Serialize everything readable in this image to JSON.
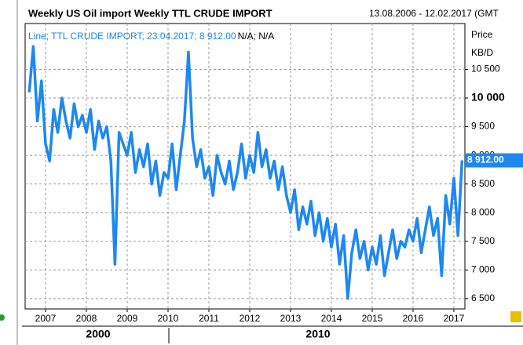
{
  "chart_data": {
    "type": "line",
    "title": "Weekly US Oil import Weekly TTL CRUDE IMPORT",
    "date_range": "13.08.2006 - 12.02.2017 (GMT",
    "legend_text": "Line; TTL CRUDE IMPORT; 23.04.2017; 8 912.00",
    "legend_extra": "N/A; N/A",
    "y_axis_title": "Price",
    "y_axis_unit": "KB/D",
    "current_label": "8 912.00",
    "decade_labels": [
      "2000",
      "2010"
    ],
    "xlim": [
      2006.5,
      2017.27
    ],
    "xticks": [
      2007,
      2008,
      2009,
      2010,
      2011,
      2012,
      2013,
      2014,
      2015,
      2016,
      2017
    ],
    "ylim": [
      6320,
      11300
    ],
    "yticks": [
      {
        "value": 6500,
        "label": "6 500"
      },
      {
        "value": 7000,
        "label": "7 000"
      },
      {
        "value": 7500,
        "label": "7 500"
      },
      {
        "value": 8000,
        "label": "8 000"
      },
      {
        "value": 8500,
        "label": "8 500"
      },
      {
        "value": 9000,
        "label": "9 000"
      },
      {
        "value": 9500,
        "label": "9 500"
      },
      {
        "value": 10000,
        "label": "10 000"
      },
      {
        "value": 10500,
        "label": "10 500"
      }
    ],
    "grid": true,
    "x": [
      2006.6,
      2006.7,
      2006.8,
      2006.9,
      2007.0,
      2007.1,
      2007.2,
      2007.3,
      2007.4,
      2007.5,
      2007.6,
      2007.7,
      2007.8,
      2007.9,
      2008.0,
      2008.1,
      2008.2,
      2008.3,
      2008.4,
      2008.5,
      2008.6,
      2008.7,
      2008.8,
      2008.9,
      2009.0,
      2009.1,
      2009.2,
      2009.3,
      2009.4,
      2009.5,
      2009.6,
      2009.7,
      2009.8,
      2009.9,
      2010.0,
      2010.1,
      2010.2,
      2010.3,
      2010.4,
      2010.5,
      2010.6,
      2010.7,
      2010.8,
      2010.9,
      2011.0,
      2011.1,
      2011.2,
      2011.3,
      2011.4,
      2011.5,
      2011.6,
      2011.7,
      2011.8,
      2011.9,
      2012.0,
      2012.1,
      2012.2,
      2012.3,
      2012.4,
      2012.5,
      2012.6,
      2012.7,
      2012.8,
      2012.9,
      2013.0,
      2013.1,
      2013.2,
      2013.3,
      2013.4,
      2013.5,
      2013.6,
      2013.7,
      2013.8,
      2013.9,
      2014.0,
      2014.1,
      2014.2,
      2014.3,
      2014.4,
      2014.5,
      2014.6,
      2014.7,
      2014.8,
      2014.9,
      2015.0,
      2015.1,
      2015.2,
      2015.3,
      2015.4,
      2015.5,
      2015.6,
      2015.7,
      2015.8,
      2015.9,
      2016.0,
      2016.1,
      2016.2,
      2016.3,
      2016.4,
      2016.5,
      2016.6,
      2016.7,
      2016.8,
      2016.9,
      2017.0,
      2017.1,
      2017.2
    ],
    "series": [
      {
        "name": "TTL CRUDE IMPORT",
        "color": "#1e88f0",
        "values": [
          10100,
          10900,
          9600,
          10300,
          9200,
          8900,
          9800,
          9400,
          10000,
          9600,
          9300,
          9900,
          9500,
          9700,
          9400,
          9800,
          9100,
          9600,
          9300,
          9500,
          8900,
          7100,
          9400,
          9200,
          9000,
          9400,
          8700,
          9100,
          8800,
          9200,
          8500,
          8900,
          8300,
          8700,
          8600,
          9200,
          8400,
          9000,
          9600,
          10800,
          9300,
          8800,
          9100,
          8600,
          8800,
          8300,
          9000,
          8700,
          8500,
          8900,
          8400,
          8700,
          9200,
          8600,
          9000,
          8700,
          9400,
          8800,
          9100,
          8600,
          8900,
          8400,
          8800,
          8300,
          8000,
          8400,
          7700,
          8100,
          7800,
          8200,
          7600,
          8000,
          7500,
          7900,
          7400,
          7800,
          7100,
          7600,
          6500,
          7300,
          7700,
          7200,
          7500,
          7000,
          7400,
          7100,
          7600,
          6900,
          7300,
          7700,
          7200,
          7500,
          7400,
          7700,
          7500,
          7900,
          7300,
          7700,
          8100,
          7600,
          7900,
          6900,
          8300,
          7800,
          8600,
          7600,
          8912
        ]
      }
    ]
  }
}
